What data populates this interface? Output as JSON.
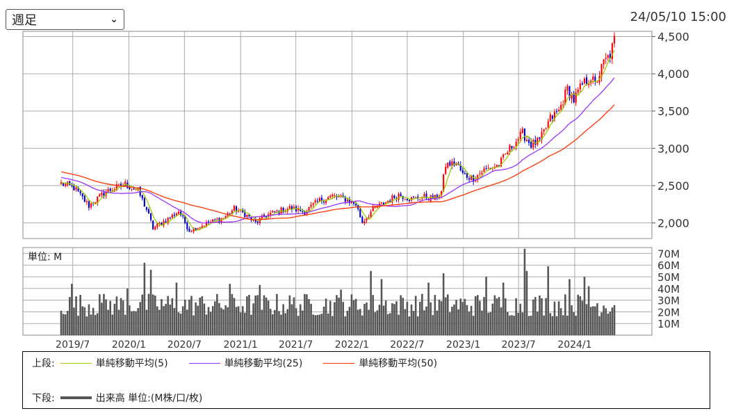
{
  "period_select": {
    "value": "週足"
  },
  "timestamp": "24/05/10 15:00",
  "volume_unit_label": "単位: M",
  "legend": {
    "upper_label": "上段:",
    "lower_label": "下段:",
    "ma": [
      {
        "label": "単純移動平均(5)",
        "color": "#99cc00"
      },
      {
        "label": "単純移動平均(25)",
        "color": "#9933ff"
      },
      {
        "label": "単純移動平均(50)",
        "color": "#ff3300"
      }
    ],
    "volume_label": "出来高 単位:(M株/口/枚)"
  },
  "colors": {
    "up": "#ff0000",
    "down": "#0000cc",
    "volume": "#555555",
    "grid": "#aaaaaa"
  },
  "chart_data": [
    {
      "type": "candlestick",
      "panel": "price",
      "y_ticks": [
        "4,500",
        "4,000",
        "3,500",
        "3,000",
        "2,500",
        "2,000"
      ],
      "y_tick_values": [
        4500,
        4000,
        3500,
        3000,
        2500,
        2000
      ],
      "ylim": [
        1790,
        4570
      ],
      "x_tick_labels": [
        "2019/7",
        "2020/1",
        "2020/7",
        "2021/1",
        "2021/7",
        "2022/1",
        "2022/7",
        "2023/1",
        "2023/7",
        "2024/1"
      ],
      "x_range": [
        "2019-05-24",
        "2024-05-10"
      ],
      "close_anchors": [
        [
          "2019-05-24",
          2530
        ],
        [
          "2019-07-05",
          2470
        ],
        [
          "2019-08-23",
          2230
        ],
        [
          "2019-10-18",
          2420
        ],
        [
          "2019-12-20",
          2520
        ],
        [
          "2020-01-31",
          2430
        ],
        [
          "2020-02-28",
          2180
        ],
        [
          "2020-03-20",
          1930
        ],
        [
          "2020-05-15",
          2070
        ],
        [
          "2020-06-12",
          2160
        ],
        [
          "2020-07-17",
          1900
        ],
        [
          "2020-09-18",
          2000
        ],
        [
          "2020-11-06",
          2070
        ],
        [
          "2020-12-11",
          2190
        ],
        [
          "2021-01-15",
          2120
        ],
        [
          "2021-02-19",
          2000
        ],
        [
          "2021-03-26",
          2100
        ],
        [
          "2021-04-30",
          2150
        ],
        [
          "2021-06-11",
          2200
        ],
        [
          "2021-07-30",
          2150
        ],
        [
          "2021-09-17",
          2300
        ],
        [
          "2021-10-29",
          2360
        ],
        [
          "2021-12-10",
          2320
        ],
        [
          "2022-01-14",
          2250
        ],
        [
          "2022-02-04",
          2010
        ],
        [
          "2022-03-11",
          2180
        ],
        [
          "2022-04-22",
          2280
        ],
        [
          "2022-06-03",
          2380
        ],
        [
          "2022-07-15",
          2320
        ],
        [
          "2022-08-19",
          2350
        ],
        [
          "2022-09-30",
          2330
        ],
        [
          "2022-10-21",
          2420
        ],
        [
          "2022-11-04",
          2780
        ],
        [
          "2022-12-09",
          2800
        ],
        [
          "2022-12-30",
          2650
        ],
        [
          "2023-02-03",
          2600
        ],
        [
          "2023-03-10",
          2710
        ],
        [
          "2023-04-28",
          2780
        ],
        [
          "2023-06-02",
          3000
        ],
        [
          "2023-07-14",
          3200
        ],
        [
          "2023-08-11",
          3050
        ],
        [
          "2023-09-08",
          3100
        ],
        [
          "2023-10-13",
          3400
        ],
        [
          "2023-11-10",
          3500
        ],
        [
          "2023-12-08",
          3800
        ],
        [
          "2023-12-29",
          3650
        ],
        [
          "2024-01-26",
          3850
        ],
        [
          "2024-02-23",
          3950
        ],
        [
          "2024-03-08",
          3850
        ],
        [
          "2024-04-05",
          4150
        ],
        [
          "2024-04-26",
          4250
        ],
        [
          "2024-05-10",
          4450
        ]
      ],
      "moving_averages": [
        5,
        25,
        50
      ],
      "ma_initial": {
        "sma25": 2680,
        "sma50": 2830
      }
    },
    {
      "type": "bar",
      "panel": "volume",
      "unit": "M",
      "y_ticks": [
        "70M",
        "60M",
        "50M",
        "40M",
        "30M",
        "20M",
        "10M"
      ],
      "y_tick_values": [
        70,
        60,
        50,
        40,
        30,
        20,
        10
      ],
      "ylim": [
        0,
        75
      ],
      "base_range": [
        16,
        36
      ],
      "spikes": [
        [
          "2019-06-28",
          44
        ],
        [
          "2019-09-27",
          35
        ],
        [
          "2019-12-27",
          40
        ],
        [
          "2020-02-21",
          62
        ],
        [
          "2020-03-13",
          56
        ],
        [
          "2020-06-05",
          45
        ],
        [
          "2020-11-27",
          44
        ],
        [
          "2021-03-05",
          43
        ],
        [
          "2021-11-26",
          39
        ],
        [
          "2022-03-04",
          55
        ],
        [
          "2022-04-08",
          48
        ],
        [
          "2022-09-09",
          45
        ],
        [
          "2022-10-28",
          53
        ],
        [
          "2023-03-17",
          50
        ],
        [
          "2023-05-12",
          45
        ],
        [
          "2023-07-21",
          74
        ],
        [
          "2023-07-28",
          55
        ],
        [
          "2023-10-06",
          59
        ],
        [
          "2023-12-15",
          48
        ],
        [
          "2024-02-02",
          50
        ],
        [
          "2024-02-16",
          42
        ]
      ]
    }
  ]
}
